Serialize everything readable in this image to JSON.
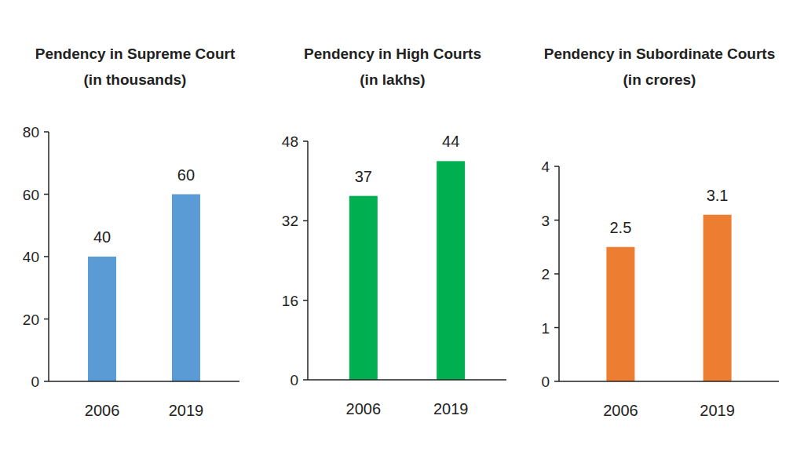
{
  "chart_data": [
    {
      "type": "bar",
      "title": "Pendency in Supreme Court",
      "subtitle": "(in thousands)",
      "categories": [
        "2006",
        "2019"
      ],
      "values": [
        40,
        60
      ],
      "color": "#5b9bd5",
      "ylim": [
        0,
        80
      ],
      "yticks": [
        0,
        20,
        40,
        60,
        80
      ],
      "grid": false,
      "data_labels": true
    },
    {
      "type": "bar",
      "title": "Pendency in High Courts",
      "subtitle": "(in lakhs)",
      "categories": [
        "2006",
        "2019"
      ],
      "values": [
        37,
        44
      ],
      "color": "#00b050",
      "ylim": [
        0,
        48
      ],
      "yticks": [
        0,
        16,
        32,
        48
      ],
      "grid": false,
      "data_labels": true
    },
    {
      "type": "bar",
      "title": "Pendency in Subordinate Courts",
      "subtitle": "(in crores)",
      "categories": [
        "2006",
        "2019"
      ],
      "values": [
        2.5,
        3.1
      ],
      "color": "#ed7d31",
      "ylim": [
        0,
        4
      ],
      "yticks": [
        0,
        1,
        2,
        3,
        4
      ],
      "grid": false,
      "data_labels": true
    }
  ]
}
